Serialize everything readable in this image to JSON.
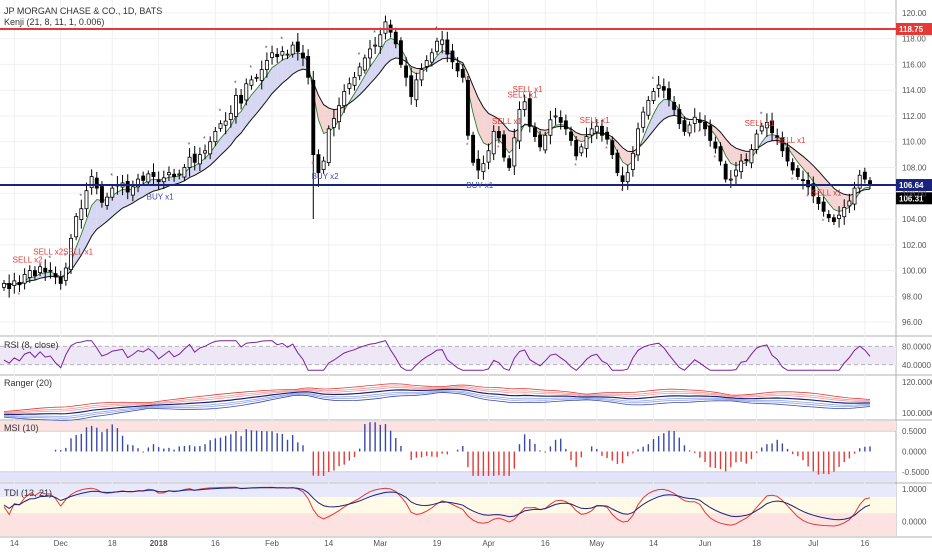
{
  "chart_data": [
    {
      "type": "candlestick",
      "title": "JP MORGAN CHASE & CO., 1D, BATS",
      "subtitle": "Kenji (21, 8, 11, 1, 0.006)",
      "x_ticks": [
        "14",
        "Dec",
        "18",
        "2018",
        "16",
        "Feb",
        "14",
        "Mar",
        "19",
        "Apr",
        "16",
        "May",
        "14",
        "Jun",
        "18",
        "Jul",
        "16"
      ],
      "ylim": [
        95,
        121
      ],
      "y_ticks": [
        96,
        98,
        100,
        102,
        104,
        106,
        108,
        110,
        112,
        114,
        116,
        118,
        120
      ],
      "y_tick_labels": [
        "96.00",
        "98.00",
        "100.00",
        "102.00",
        "104.00",
        "106.00",
        "108.00",
        "110.00",
        "112.00",
        "114.00",
        "116.00",
        "118.00",
        "120.00"
      ],
      "horizontal_lines": [
        {
          "value": 118.75,
          "label": "118.75",
          "color": "#e53935"
        },
        {
          "value": 106.64,
          "label": "106.64",
          "color": "#1a237e"
        },
        {
          "value": 106.31,
          "label": "106.31",
          "color": "#000000"
        }
      ],
      "close_series": [
        99.0,
        98.6,
        99.2,
        98.9,
        99.7,
        100.0,
        99.6,
        100.3,
        99.9,
        100.0,
        99.5,
        99.0,
        100.2,
        102.5,
        104.2,
        104.8,
        106.2,
        107.3,
        106.4,
        105.3,
        105.7,
        106.4,
        106.6,
        106.8,
        106.1,
        106.5,
        107.1,
        107.0,
        107.5,
        107.3,
        106.9,
        107.2,
        107.6,
        107.3,
        107.5,
        108.0,
        108.8,
        108.4,
        109.0,
        109.3,
        110.0,
        110.8,
        111.4,
        111.6,
        112.2,
        113.6,
        113.0,
        114.5,
        114.8,
        115.0,
        115.6,
        116.3,
        116.9,
        116.6,
        117.0,
        116.8,
        117.5,
        117.0,
        116.5,
        115.0,
        109.0,
        107.6,
        108.5,
        111.0,
        111.8,
        112.8,
        113.9,
        114.5,
        115.0,
        115.8,
        116.5,
        117.2,
        117.5,
        118.3,
        119.3,
        118.5,
        117.6,
        116.0,
        115.0,
        113.5,
        114.8,
        115.6,
        116.3,
        116.9,
        117.8,
        117.9,
        116.8,
        116.2,
        115.5,
        115.0,
        110.5,
        108.4,
        107.8,
        108.3,
        109.3,
        110.8,
        110.3,
        108.8,
        108.0,
        110.3,
        112.5,
        113.1,
        111.2,
        110.4,
        109.6,
        110.5,
        111.7,
        112.0,
        111.5,
        111.0,
        110.1,
        108.9,
        109.6,
        110.4,
        111.0,
        111.2,
        110.5,
        110.2,
        109.0,
        107.6,
        106.9,
        107.6,
        109.1,
        111.0,
        112.3,
        113.2,
        113.9,
        114.4,
        114.0,
        113.3,
        112.5,
        111.4,
        110.8,
        111.3,
        111.9,
        111.5,
        111.0,
        110.1,
        109.5,
        108.5,
        107.1,
        107.1,
        107.8,
        108.5,
        108.6,
        109.4,
        110.6,
        111.2,
        111.5,
        110.7,
        110.3,
        109.3,
        108.5,
        107.8,
        107.3,
        107.0,
        106.5,
        105.8,
        105.2,
        104.6,
        104.1,
        103.8,
        104.3,
        104.9,
        105.4,
        106.4,
        107.4,
        107.1,
        106.6
      ],
      "signals": [
        {
          "label": "SELL x2",
          "color": "#e53935"
        },
        {
          "label": "SELL x2SELL x1",
          "color": "#e53935"
        },
        {
          "label": "BUY x1",
          "color": "#3949ab"
        },
        {
          "label": "BUY x2",
          "color": "#3949ab"
        },
        {
          "label": "BUY x1",
          "color": "#3949ab"
        },
        {
          "label": "SELL x1",
          "color": "#e53935"
        },
        {
          "label": "SELL x1",
          "color": "#e53935"
        },
        {
          "label": "SELL x1",
          "color": "#e53935"
        },
        {
          "label": "SELL x1",
          "color": "#e53935"
        },
        {
          "label": "SELL x1",
          "color": "#e53935"
        },
        {
          "label": "SELL x1",
          "color": "#e53935"
        },
        {
          "label": "SELL x1",
          "color": "#e53935"
        }
      ]
    },
    {
      "type": "line",
      "title": "RSI (8, close)",
      "ylim": [
        20,
        100
      ],
      "y_ticks": [
        40,
        80
      ],
      "y_tick_labels": [
        "40.0000",
        "80.0000"
      ],
      "bands": [
        40,
        80
      ],
      "color": "#7b1fa2",
      "fill": "#ede7f6"
    },
    {
      "type": "line",
      "title": "Ranger (20)",
      "ylim": [
        96,
        124
      ],
      "y_ticks": [
        100,
        120
      ],
      "y_tick_labels": [
        "100.0000",
        "120.0000"
      ],
      "series": [
        {
          "color": "#e53935"
        },
        {
          "color": "#ef9a9a"
        },
        {
          "color": "#ef9a9a"
        },
        {
          "color": "#1a237e"
        },
        {
          "color": "#90a4e8"
        },
        {
          "color": "#90a4e8"
        },
        {
          "color": "#3949ab"
        }
      ]
    },
    {
      "type": "bar",
      "title": "MSI (10)",
      "ylim": [
        -0.75,
        0.75
      ],
      "y_ticks": [
        0.5,
        0,
        -0.5
      ],
      "y_tick_labels": [
        "0.5000",
        "0.0000",
        "-0.5000"
      ],
      "positive_color": "#3949ab",
      "negative_color": "#e53935"
    },
    {
      "type": "line",
      "title": "TDI (13, 21)",
      "ylim": [
        -0.45,
        1.15
      ],
      "y_ticks": [
        1.0,
        0.0
      ],
      "y_tick_labels": [
        "1.0000",
        "0.0000"
      ],
      "series": [
        {
          "color": "#e53935"
        },
        {
          "color": "#1a237e"
        }
      ]
    }
  ]
}
